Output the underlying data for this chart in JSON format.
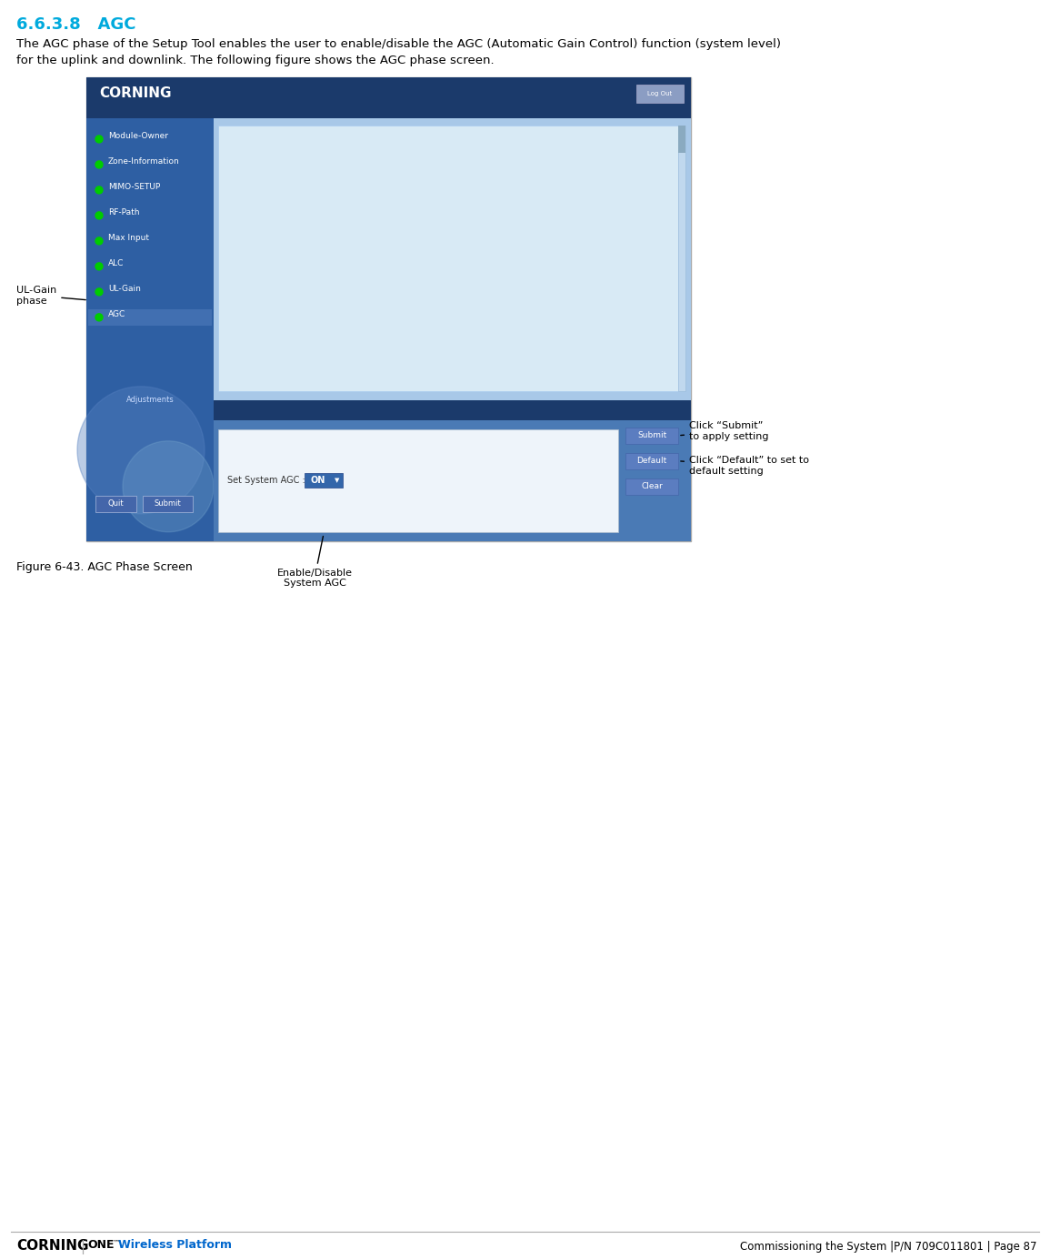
{
  "page_title": "6.6.3.8   AGC",
  "page_title_color": "#00AADD",
  "body_text_line1": "The AGC phase of the Setup Tool enables the user to enable/disable the AGC (Automatic Gain Control) function (system level)",
  "body_text_line2": "for the uplink and downlink. The following figure shows the AGC phase screen.",
  "figure_caption": "Figure 6-43. AGC Phase Screen",
  "footer_left1": "CORNING",
  "footer_left2": "ONE™ Wireless Platform",
  "footer_right": "Commissioning the System |P/N 709C011801 | Page 87",
  "screen_bg": "#FFFFFF",
  "header_bg": "#1B3A6B",
  "sidebar_bg": "#2E5FA3",
  "content_bg": "#A8C8E8",
  "bottom_panel_bg": "#2E5FA3",
  "form_bg": "#C8DCF0",
  "corning_logo_color": "#FFFFFF",
  "menu_items": [
    "Module-Owner",
    "Zone-Information",
    "MIMO-SETUP",
    "RF-Path",
    "Max Input",
    "ALC",
    "UL-Gain",
    "AGC"
  ],
  "menu_bottom": "Adjustments",
  "annotation_ul_gain": "UL-Gain\nphase",
  "annotation_enable": "Enable/Disable\nSystem AGC",
  "annotation_submit": "Click “Submit”\nto apply setting",
  "annotation_default": "Click “Default” to set to\ndefault setting",
  "set_system_agc_label": "Set System AGC :",
  "agc_value": "ON"
}
